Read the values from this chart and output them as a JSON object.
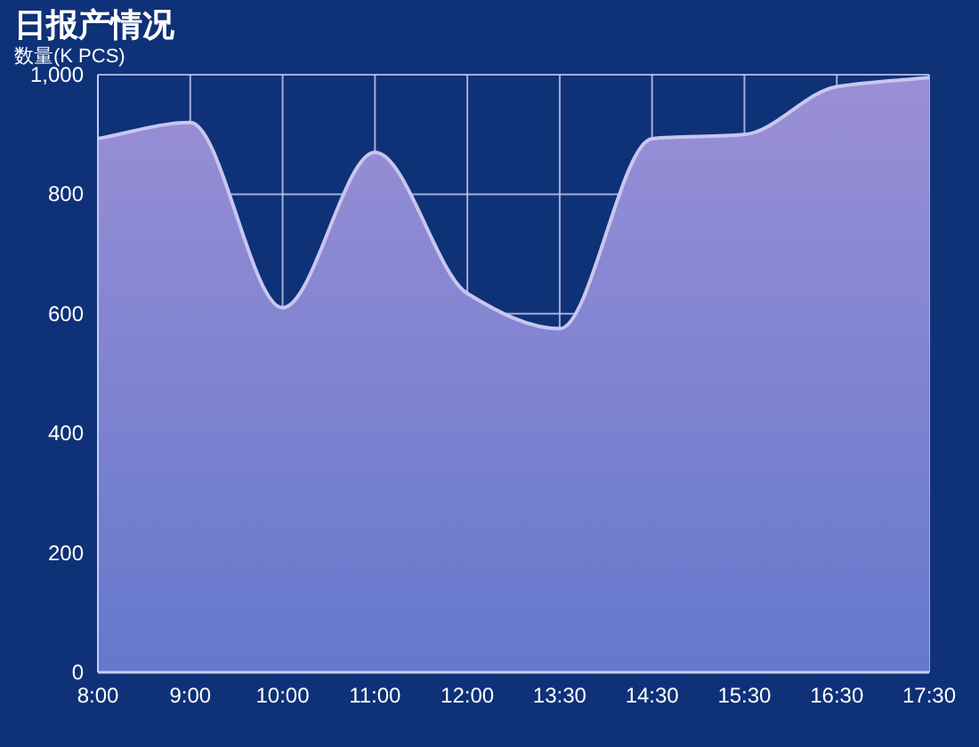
{
  "chart_data": {
    "type": "area",
    "title": "日报产情况",
    "ylabel": "数量(K PCS)",
    "categories": [
      "8:00",
      "9:00",
      "10:00",
      "11:00",
      "12:00",
      "13:30",
      "14:30",
      "15:30",
      "16:30",
      "17:30"
    ],
    "series": [
      {
        "color": "#9b8fd6",
        "values": [
          893,
          920,
          610,
          870,
          634,
          575,
          893,
          900,
          980,
          995
        ]
      }
    ],
    "ylim": [
      0,
      1000
    ],
    "yticks": [
      0,
      200,
      400,
      600,
      800,
      {
        "value": 1000,
        "label": "1,000"
      }
    ],
    "grid": true,
    "marker": "none",
    "line_style": "solid"
  }
}
